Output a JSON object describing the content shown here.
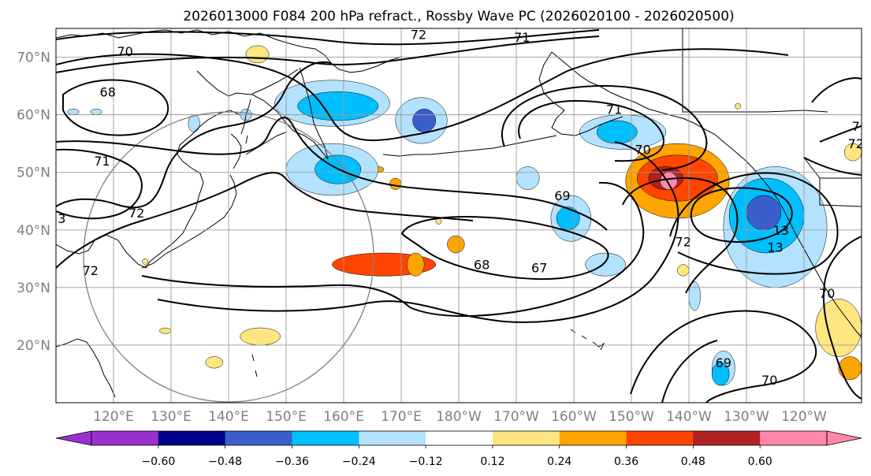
{
  "title": "2026013000 F084 200 hPa refract., Rossby Wave PC (2026020100 - 2026020500)",
  "map": {
    "lon_min": 110,
    "lon_max": 250,
    "lat_min": 10,
    "lat_max": 75,
    "grid_lons": [
      120,
      130,
      140,
      150,
      160,
      170,
      180,
      190,
      200,
      210,
      220,
      230,
      240
    ],
    "grid_lats": [
      20,
      30,
      40,
      50,
      60,
      70
    ],
    "lon_labels": [
      "120°E",
      "130°E",
      "140°E",
      "150°E",
      "160°E",
      "170°E",
      "180°W",
      "170°W",
      "160°W",
      "150°W",
      "140°W",
      "130°W",
      "120°W"
    ],
    "lat_labels": [
      "20°N",
      "30°N",
      "40°N",
      "50°N",
      "60°N",
      "70°N"
    ],
    "circle": {
      "center_lon": 140,
      "center_lat": 35,
      "radius_deg_lat": 25
    }
  },
  "colorbar": {
    "colors": [
      "#9b30d0",
      "#00008b",
      "#3a5fcd",
      "#00bfff",
      "#b3e2ff",
      "#ffffff",
      "#ffe680",
      "#ffa500",
      "#ff4500",
      "#b22222",
      "#ff88aa"
    ],
    "tick_labels": [
      "−0.60",
      "−0.48",
      "−0.36",
      "−0.24",
      "−0.12",
      "0.12",
      "0.24",
      "0.36",
      "0.48",
      "0.60"
    ]
  },
  "contour_labels": [
    {
      "text": "72",
      "lon": 173,
      "lat": 74
    },
    {
      "text": "71",
      "lon": 191,
      "lat": 73.5
    },
    {
      "text": "70",
      "lon": 122,
      "lat": 71
    },
    {
      "text": "68",
      "lon": 119,
      "lat": 64
    },
    {
      "text": "71",
      "lon": 207,
      "lat": 61
    },
    {
      "text": "70",
      "lon": 212,
      "lat": 54
    },
    {
      "text": "71",
      "lon": 118,
      "lat": 52
    },
    {
      "text": "72",
      "lon": 124,
      "lat": 43
    },
    {
      "text": "3",
      "lon": 111,
      "lat": 42
    },
    {
      "text": "69",
      "lon": 198,
      "lat": 46
    },
    {
      "text": "72",
      "lon": 219,
      "lat": 38
    },
    {
      "text": "13",
      "lon": 236,
      "lat": 40
    },
    {
      "text": "13",
      "lon": 235,
      "lat": 37
    },
    {
      "text": "68",
      "lon": 184,
      "lat": 34
    },
    {
      "text": "67",
      "lon": 194,
      "lat": 33.5
    },
    {
      "text": "72",
      "lon": 116,
      "lat": 33
    },
    {
      "text": "72",
      "lon": 249,
      "lat": 55
    },
    {
      "text": "70",
      "lon": 244,
      "lat": 29
    },
    {
      "text": "69",
      "lon": 226,
      "lat": 17
    },
    {
      "text": "70",
      "lon": 234,
      "lat": 14
    },
    {
      "text": "7",
      "lon": 249,
      "lat": 58
    }
  ],
  "positive_regions": [
    {
      "lon": [
        158,
        176
      ],
      "lat": [
        32,
        36
      ],
      "level": 3
    },
    {
      "lon": [
        171,
        174
      ],
      "lat": [
        32,
        36
      ],
      "level": 2
    },
    {
      "lon": [
        178,
        181
      ],
      "lat": [
        36,
        39
      ],
      "level": 2
    },
    {
      "lon": [
        176,
        177
      ],
      "lat": [
        41,
        42
      ],
      "level": 1
    },
    {
      "lon": [
        168,
        170
      ],
      "lat": [
        47,
        49
      ],
      "level": 2
    },
    {
      "lon": [
        165,
        167
      ],
      "lat": [
        50,
        51
      ],
      "level": 2
    },
    {
      "lon": [
        143,
        147
      ],
      "lat": [
        69,
        72
      ],
      "level": 1
    },
    {
      "lon": [
        125,
        126
      ],
      "lat": [
        34,
        35
      ],
      "level": 1
    },
    {
      "lon": [
        128,
        130
      ],
      "lat": [
        22,
        23
      ],
      "level": 1
    },
    {
      "lon": [
        136,
        139
      ],
      "lat": [
        16,
        18
      ],
      "level": 1
    },
    {
      "lon": [
        142,
        149
      ],
      "lat": [
        20,
        23
      ],
      "level": 1
    },
    {
      "lon": [
        209,
        227
      ],
      "lat": [
        42,
        55
      ],
      "level": 2
    },
    {
      "lon": [
        211,
        225
      ],
      "lat": [
        45,
        53
      ],
      "level": 3
    },
    {
      "lon": [
        213,
        219
      ],
      "lat": [
        47,
        51
      ],
      "level": 4
    },
    {
      "lon": [
        215,
        218
      ],
      "lat": [
        47,
        50
      ],
      "level": 5
    },
    {
      "lon": [
        218,
        220
      ],
      "lat": [
        32,
        34
      ],
      "level": 1
    },
    {
      "lon": [
        242,
        250
      ],
      "lat": [
        18,
        28
      ],
      "level": 1
    },
    {
      "lon": [
        246,
        250
      ],
      "lat": [
        14,
        18
      ],
      "level": 2
    },
    {
      "lon": [
        247,
        250
      ],
      "lat": [
        52,
        55
      ],
      "level": 1
    },
    {
      "lon": [
        228,
        229
      ],
      "lat": [
        61,
        62
      ],
      "level": 1
    }
  ],
  "negative_regions": [
    {
      "lon": [
        148,
        168
      ],
      "lat": [
        58,
        66
      ],
      "level": 1
    },
    {
      "lon": [
        152,
        166
      ],
      "lat": [
        59,
        64
      ],
      "level": 2
    },
    {
      "lon": [
        169,
        178
      ],
      "lat": [
        55,
        63
      ],
      "level": 1
    },
    {
      "lon": [
        172,
        176
      ],
      "lat": [
        57,
        61
      ],
      "level": 3
    },
    {
      "lon": [
        150,
        166
      ],
      "lat": [
        46,
        55
      ],
      "level": 1
    },
    {
      "lon": [
        155,
        163
      ],
      "lat": [
        48,
        53
      ],
      "level": 2
    },
    {
      "lon": [
        190,
        194
      ],
      "lat": [
        47,
        51
      ],
      "level": 1
    },
    {
      "lon": [
        196,
        203
      ],
      "lat": [
        38,
        46
      ],
      "level": 1
    },
    {
      "lon": [
        197,
        201
      ],
      "lat": [
        40,
        44
      ],
      "level": 2
    },
    {
      "lon": [
        202,
        209
      ],
      "lat": [
        32,
        36
      ],
      "level": 1
    },
    {
      "lon": [
        201,
        216
      ],
      "lat": [
        54,
        60
      ],
      "level": 1
    },
    {
      "lon": [
        204,
        211
      ],
      "lat": [
        55,
        59
      ],
      "level": 2
    },
    {
      "lon": [
        226,
        244
      ],
      "lat": [
        30,
        51
      ],
      "level": 1
    },
    {
      "lon": [
        227,
        240
      ],
      "lat": [
        36,
        49
      ],
      "level": 2
    },
    {
      "lon": [
        230,
        236
      ],
      "lat": [
        40,
        46
      ],
      "level": 3
    },
    {
      "lon": [
        224,
        228
      ],
      "lat": [
        13,
        19
      ],
      "level": 1
    },
    {
      "lon": [
        224,
        227
      ],
      "lat": [
        13,
        17
      ],
      "level": 2
    },
    {
      "lon": [
        220,
        222
      ],
      "lat": [
        26,
        31
      ],
      "level": 1
    },
    {
      "lon": [
        112,
        114
      ],
      "lat": [
        60,
        61
      ],
      "level": 1
    },
    {
      "lon": [
        116,
        118
      ],
      "lat": [
        60,
        61
      ],
      "level": 1
    },
    {
      "lon": [
        133,
        135
      ],
      "lat": [
        57,
        60
      ],
      "level": 1
    },
    {
      "lon": [
        142,
        144
      ],
      "lat": [
        59,
        61
      ],
      "level": 1
    }
  ]
}
